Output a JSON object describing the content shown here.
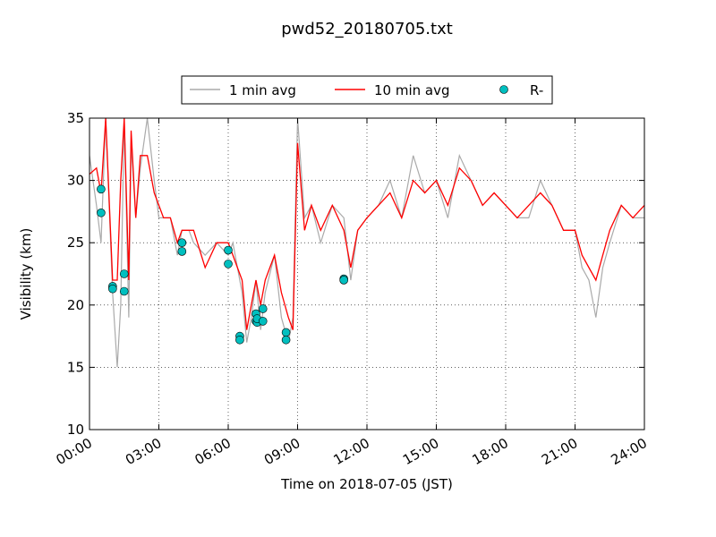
{
  "chart_data": {
    "type": "line",
    "title": "pwd52_20180705.txt",
    "xlabel": "Time on 2018-07-05 (JST)",
    "ylabel": "Visibility (km)",
    "xlim": [
      "00:00",
      "24:00"
    ],
    "ylim": [
      10,
      35
    ],
    "x_ticks": [
      "00:00",
      "03:00",
      "06:00",
      "09:00",
      "12:00",
      "15:00",
      "18:00",
      "21:00",
      "24:00"
    ],
    "y_ticks": [
      "10",
      "15",
      "20",
      "25",
      "30",
      "35"
    ],
    "grid": true,
    "legend_position": "top-center (above plot)",
    "legend": [
      "1 min avg",
      "10 min avg",
      "R-"
    ],
    "colors": {
      "1 min avg": "#aaaaaa",
      "10 min avg": "#ff0000",
      "R-": "#00bfbf"
    },
    "series": [
      {
        "name": "1 min avg",
        "time_hours": [
          0.0,
          0.3,
          0.5,
          0.7,
          1.0,
          1.2,
          1.35,
          1.5,
          1.7,
          1.8,
          2.0,
          2.2,
          2.5,
          2.8,
          3.0,
          3.2,
          3.5,
          3.8,
          4.0,
          4.3,
          4.5,
          5.0,
          5.5,
          6.0,
          6.2,
          6.4,
          6.6,
          6.8,
          7.0,
          7.2,
          7.4,
          7.6,
          8.0,
          8.3,
          8.6,
          8.8,
          9.0,
          9.3,
          9.6,
          10.0,
          10.5,
          11.0,
          11.3,
          11.6,
          12.0,
          12.5,
          13.0,
          13.5,
          14.0,
          14.5,
          15.0,
          15.5,
          16.0,
          16.5,
          17.0,
          17.5,
          18.0,
          18.5,
          19.0,
          19.5,
          20.0,
          20.5,
          21.0,
          21.3,
          21.6,
          21.9,
          22.2,
          22.5,
          23.0,
          23.5,
          24.0
        ],
        "visibility_km": [
          32,
          28,
          25,
          35,
          21,
          15,
          20,
          35,
          19,
          33,
          27,
          31,
          36,
          30,
          27,
          27,
          27,
          24,
          26,
          26,
          25,
          24,
          25,
          24,
          25,
          23,
          21,
          17,
          19,
          22,
          18,
          21,
          24,
          19,
          17,
          19,
          35,
          27,
          28,
          25,
          28,
          27,
          22,
          26,
          27,
          28,
          30,
          27,
          32,
          29,
          30,
          27,
          32,
          30,
          28,
          29,
          28,
          27,
          27,
          30,
          28,
          26,
          26,
          23,
          22,
          19,
          23,
          25,
          28,
          27,
          27
        ]
      },
      {
        "name": "10 min avg",
        "time_hours": [
          0.0,
          0.3,
          0.5,
          0.7,
          1.0,
          1.2,
          1.35,
          1.5,
          1.7,
          1.8,
          2.0,
          2.2,
          2.5,
          2.8,
          3.0,
          3.2,
          3.5,
          3.8,
          4.0,
          4.3,
          4.5,
          5.0,
          5.5,
          6.0,
          6.2,
          6.4,
          6.6,
          6.8,
          7.0,
          7.2,
          7.4,
          7.6,
          8.0,
          8.3,
          8.6,
          8.8,
          9.0,
          9.3,
          9.6,
          10.0,
          10.5,
          11.0,
          11.3,
          11.6,
          12.0,
          12.5,
          13.0,
          13.5,
          14.0,
          14.5,
          15.0,
          15.5,
          16.0,
          16.5,
          17.0,
          17.5,
          18.0,
          18.5,
          19.0,
          19.5,
          20.0,
          20.5,
          21.0,
          21.3,
          21.6,
          21.9,
          22.2,
          22.5,
          23.0,
          23.5,
          24.0
        ],
        "visibility_km": [
          30.5,
          31,
          29,
          35,
          22,
          22,
          30,
          35,
          22,
          34,
          27,
          32,
          32,
          29,
          28,
          27,
          27,
          25,
          26,
          26,
          26,
          23,
          25,
          25,
          24,
          23,
          22,
          18,
          20,
          22,
          20,
          22,
          24,
          21,
          19,
          18,
          33,
          26,
          28,
          26,
          28,
          26,
          23,
          26,
          27,
          28,
          29,
          27,
          30,
          29,
          30,
          28,
          31,
          30,
          28,
          29,
          28,
          27,
          28,
          29,
          28,
          26,
          26,
          24,
          23,
          22,
          24,
          26,
          28,
          27,
          28
        ]
      },
      {
        "name": "R-",
        "time_hours": [
          0.5,
          0.5,
          1.0,
          1.0,
          1.5,
          1.5,
          4.0,
          4.0,
          6.0,
          6.0,
          6.5,
          6.5,
          7.2,
          7.2,
          7.25,
          7.25,
          7.5,
          7.5,
          8.5,
          8.5,
          11.0,
          11.0
        ],
        "visibility_km": [
          29.3,
          27.4,
          21.5,
          21.3,
          22.5,
          21.1,
          25.0,
          24.3,
          24.4,
          23.3,
          17.5,
          17.2,
          19.3,
          18.7,
          18.6,
          18.9,
          19.7,
          18.7,
          17.8,
          17.2,
          22.1,
          22.0
        ]
      }
    ]
  }
}
